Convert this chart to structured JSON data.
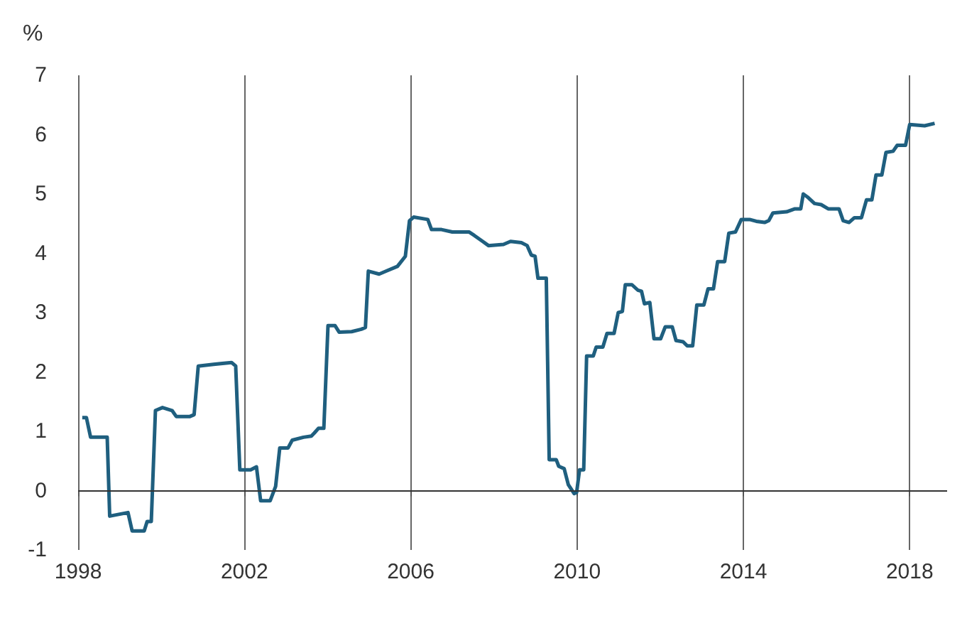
{
  "chart_data": {
    "type": "line",
    "ylabel": "%",
    "xlim": [
      1998,
      2018.9
    ],
    "xticks": [
      1998,
      2002,
      2006,
      2010,
      2014,
      2018
    ],
    "ylim": [
      -1,
      7
    ],
    "yticks": [
      -1,
      0,
      1,
      2,
      3,
      4,
      5,
      6,
      7
    ],
    "grid": "x",
    "marker": "none",
    "line_style": "solid",
    "ref_lines": [
      {
        "axis": "y",
        "value": 0,
        "color": "#333333"
      }
    ],
    "series": [
      {
        "color": "#1f5f7f",
        "x": [
          1998.1,
          1998.2,
          1998.3,
          1998.7,
          1998.76,
          1999.2,
          1999.3,
          1999.59,
          1999.66,
          1999.76,
          1999.86,
          2000.03,
          2000.26,
          2000.36,
          2000.69,
          2000.79,
          2000.89,
          2001.26,
          2001.69,
          2001.79,
          2001.89,
          2002.15,
          2002.29,
          2002.39,
          2002.62,
          2002.75,
          2002.85,
          2003.05,
          2003.15,
          2003.42,
          2003.61,
          2003.68,
          2003.78,
          2003.91,
          2004.01,
          2004.18,
          2004.28,
          2004.58,
          2004.81,
          2004.91,
          2004.98,
          2005.24,
          2005.41,
          2005.68,
          2005.87,
          2005.97,
          2006.07,
          2006.41,
          2006.5,
          2006.74,
          2007.0,
          2007.4,
          2007.53,
          2007.73,
          2007.87,
          2008.23,
          2008.4,
          2008.66,
          2008.8,
          2008.9,
          2008.99,
          2009.06,
          2009.26,
          2009.33,
          2009.5,
          2009.56,
          2009.69,
          2009.79,
          2009.93,
          2009.99,
          2010.06,
          2010.16,
          2010.23,
          2010.39,
          2010.46,
          2010.62,
          2010.72,
          2010.89,
          2010.99,
          2011.09,
          2011.16,
          2011.32,
          2011.46,
          2011.55,
          2011.62,
          2011.75,
          2011.85,
          2012.01,
          2012.12,
          2012.29,
          2012.38,
          2012.55,
          2012.65,
          2012.78,
          2012.88,
          2013.05,
          2013.15,
          2013.28,
          2013.38,
          2013.55,
          2013.65,
          2013.81,
          2013.95,
          2014.15,
          2014.31,
          2014.51,
          2014.61,
          2014.71,
          2015.04,
          2015.24,
          2015.38,
          2015.44,
          2015.54,
          2015.71,
          2015.87,
          2016.04,
          2016.3,
          2016.4,
          2016.54,
          2016.67,
          2016.84,
          2016.96,
          2017.09,
          2017.19,
          2017.33,
          2017.43,
          2017.6,
          2017.7,
          2017.9,
          2018.0,
          2018.36,
          2018.6
        ],
        "values": [
          1.23,
          1.23,
          0.9,
          0.9,
          -0.43,
          -0.37,
          -0.68,
          -0.68,
          -0.52,
          -0.52,
          1.35,
          1.4,
          1.35,
          1.25,
          1.25,
          1.28,
          2.1,
          2.13,
          2.16,
          2.1,
          0.35,
          0.35,
          0.4,
          -0.17,
          -0.17,
          0.07,
          0.72,
          0.72,
          0.85,
          0.9,
          0.92,
          0.97,
          1.05,
          1.05,
          2.78,
          2.78,
          2.67,
          2.68,
          2.72,
          2.75,
          3.7,
          3.65,
          3.7,
          3.78,
          3.95,
          4.55,
          4.61,
          4.57,
          4.4,
          4.4,
          4.36,
          4.36,
          4.3,
          4.2,
          4.13,
          4.15,
          4.2,
          4.18,
          4.13,
          3.97,
          3.95,
          3.58,
          3.58,
          0.52,
          0.52,
          0.41,
          0.37,
          0.1,
          -0.05,
          -0.03,
          0.35,
          0.35,
          2.27,
          2.27,
          2.42,
          2.42,
          2.65,
          2.65,
          3.0,
          3.02,
          3.47,
          3.47,
          3.38,
          3.36,
          3.15,
          3.17,
          2.56,
          2.56,
          2.76,
          2.76,
          2.53,
          2.51,
          2.44,
          2.44,
          3.13,
          3.13,
          3.4,
          3.4,
          3.86,
          3.86,
          4.34,
          4.36,
          4.57,
          4.57,
          4.54,
          4.52,
          4.55,
          4.68,
          4.7,
          4.75,
          4.75,
          5.0,
          4.95,
          4.84,
          4.82,
          4.75,
          4.75,
          4.55,
          4.52,
          4.6,
          4.6,
          4.9,
          4.9,
          5.32,
          5.32,
          5.7,
          5.72,
          5.82,
          5.82,
          6.17,
          6.15,
          6.19
        ]
      }
    ]
  }
}
